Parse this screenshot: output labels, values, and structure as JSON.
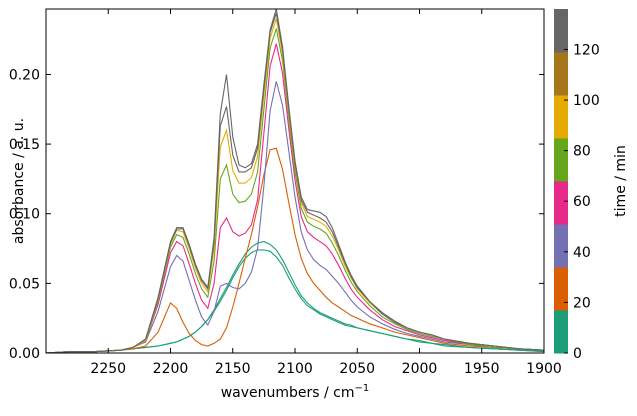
{
  "chart_data": {
    "type": "line",
    "title": "",
    "xlabel": "wavenumbers / cm⁻¹",
    "ylabel": "absorbance / a. u.",
    "xlim": [
      2300,
      1900
    ],
    "ylim": [
      0,
      0.247
    ],
    "x_inverted": true,
    "grid": false,
    "x_ticks": [
      "2250",
      "2200",
      "2150",
      "2100",
      "2050",
      "2000",
      "1950",
      "1900"
    ],
    "y_ticks": [
      "0.00",
      "0.05",
      "0.10",
      "0.15",
      "0.20"
    ],
    "x_tick_values": [
      2250,
      2200,
      2150,
      2100,
      2050,
      2000,
      1950,
      1900
    ],
    "y_tick_values": [
      0,
      0.05,
      0.1,
      0.15,
      0.2
    ],
    "colorbar": {
      "label": "time / min",
      "ticks": [
        "0",
        "20",
        "40",
        "60",
        "80",
        "100",
        "120"
      ],
      "tick_values": [
        0,
        20,
        40,
        60,
        80,
        100,
        120
      ],
      "range": [
        0,
        136
      ],
      "colors": [
        "#1b9e77",
        "#d95f02",
        "#7570b3",
        "#e7298a",
        "#66a61e",
        "#e6ab02",
        "#a6761d",
        "#666666"
      ]
    },
    "series_x": [
      2300,
      2280,
      2260,
      2240,
      2230,
      2220,
      2210,
      2200,
      2195,
      2190,
      2185,
      2180,
      2175,
      2170,
      2165,
      2160,
      2155,
      2150,
      2145,
      2140,
      2135,
      2130,
      2125,
      2120,
      2115,
      2110,
      2105,
      2100,
      2095,
      2090,
      2085,
      2080,
      2075,
      2070,
      2065,
      2060,
      2055,
      2050,
      2040,
      2030,
      2020,
      2010,
      2000,
      1990,
      1980,
      1960,
      1940,
      1920,
      1900
    ],
    "series": [
      {
        "time": 0,
        "y": [
          0.0,
          0.001,
          0.001,
          0.002,
          0.003,
          0.004,
          0.005,
          0.007,
          0.008,
          0.01,
          0.012,
          0.015,
          0.019,
          0.024,
          0.03,
          0.037,
          0.045,
          0.054,
          0.062,
          0.068,
          0.072,
          0.074,
          0.074,
          0.073,
          0.069,
          0.063,
          0.054,
          0.046,
          0.039,
          0.034,
          0.031,
          0.028,
          0.026,
          0.024,
          0.022,
          0.02,
          0.019,
          0.018,
          0.016,
          0.014,
          0.012,
          0.01,
          0.008,
          0.007,
          0.005,
          0.004,
          0.003,
          0.002,
          0.001
        ]
      },
      {
        "time": 2,
        "y": [
          0.0,
          0.001,
          0.001,
          0.002,
          0.003,
          0.004,
          0.005,
          0.007,
          0.008,
          0.01,
          0.012,
          0.015,
          0.019,
          0.024,
          0.031,
          0.039,
          0.047,
          0.056,
          0.064,
          0.071,
          0.076,
          0.079,
          0.08,
          0.078,
          0.074,
          0.067,
          0.058,
          0.049,
          0.041,
          0.036,
          0.032,
          0.029,
          0.027,
          0.025,
          0.023,
          0.021,
          0.02,
          0.018,
          0.016,
          0.014,
          0.012,
          0.01,
          0.009,
          0.007,
          0.006,
          0.004,
          0.003,
          0.002,
          0.001
        ]
      },
      {
        "time": 20,
        "y": [
          0.0,
          0.001,
          0.001,
          0.002,
          0.003,
          0.005,
          0.015,
          0.036,
          0.032,
          0.022,
          0.014,
          0.009,
          0.006,
          0.005,
          0.007,
          0.01,
          0.018,
          0.033,
          0.05,
          0.068,
          0.085,
          0.105,
          0.128,
          0.146,
          0.147,
          0.132,
          0.108,
          0.085,
          0.068,
          0.057,
          0.05,
          0.045,
          0.04,
          0.036,
          0.033,
          0.03,
          0.027,
          0.025,
          0.021,
          0.018,
          0.015,
          0.013,
          0.011,
          0.009,
          0.007,
          0.005,
          0.004,
          0.003,
          0.002
        ]
      },
      {
        "time": 40,
        "y": [
          0.0,
          0.001,
          0.001,
          0.002,
          0.004,
          0.008,
          0.03,
          0.062,
          0.07,
          0.066,
          0.052,
          0.038,
          0.026,
          0.02,
          0.03,
          0.048,
          0.05,
          0.047,
          0.046,
          0.05,
          0.058,
          0.075,
          0.12,
          0.174,
          0.195,
          0.178,
          0.145,
          0.112,
          0.087,
          0.074,
          0.067,
          0.063,
          0.06,
          0.055,
          0.05,
          0.044,
          0.038,
          0.033,
          0.026,
          0.021,
          0.017,
          0.014,
          0.012,
          0.01,
          0.008,
          0.006,
          0.004,
          0.003,
          0.002
        ]
      },
      {
        "time": 60,
        "y": [
          0.0,
          0.001,
          0.001,
          0.002,
          0.004,
          0.009,
          0.035,
          0.072,
          0.08,
          0.077,
          0.064,
          0.05,
          0.038,
          0.032,
          0.05,
          0.09,
          0.097,
          0.087,
          0.084,
          0.086,
          0.092,
          0.11,
          0.158,
          0.206,
          0.222,
          0.201,
          0.161,
          0.124,
          0.098,
          0.087,
          0.083,
          0.08,
          0.077,
          0.071,
          0.063,
          0.054,
          0.046,
          0.04,
          0.031,
          0.024,
          0.019,
          0.016,
          0.013,
          0.011,
          0.009,
          0.006,
          0.004,
          0.003,
          0.002
        ]
      },
      {
        "time": 80,
        "y": [
          0.0,
          0.001,
          0.001,
          0.002,
          0.004,
          0.009,
          0.037,
          0.076,
          0.085,
          0.083,
          0.071,
          0.057,
          0.046,
          0.04,
          0.066,
          0.125,
          0.135,
          0.114,
          0.108,
          0.109,
          0.114,
          0.13,
          0.175,
          0.219,
          0.233,
          0.21,
          0.168,
          0.13,
          0.104,
          0.094,
          0.091,
          0.089,
          0.086,
          0.079,
          0.07,
          0.06,
          0.051,
          0.044,
          0.034,
          0.026,
          0.021,
          0.017,
          0.014,
          0.012,
          0.01,
          0.006,
          0.004,
          0.003,
          0.002
        ]
      },
      {
        "time": 100,
        "y": [
          0.0,
          0.001,
          0.001,
          0.002,
          0.004,
          0.009,
          0.038,
          0.078,
          0.088,
          0.087,
          0.075,
          0.061,
          0.05,
          0.044,
          0.075,
          0.148,
          0.16,
          0.131,
          0.122,
          0.122,
          0.126,
          0.141,
          0.185,
          0.226,
          0.24,
          0.215,
          0.172,
          0.134,
          0.108,
          0.098,
          0.096,
          0.094,
          0.091,
          0.084,
          0.074,
          0.063,
          0.054,
          0.046,
          0.036,
          0.028,
          0.022,
          0.018,
          0.015,
          0.013,
          0.01,
          0.007,
          0.005,
          0.003,
          0.002
        ]
      },
      {
        "time": 120,
        "y": [
          0.0,
          0.001,
          0.001,
          0.002,
          0.004,
          0.01,
          0.039,
          0.079,
          0.089,
          0.089,
          0.077,
          0.063,
          0.052,
          0.046,
          0.08,
          0.163,
          0.177,
          0.142,
          0.13,
          0.13,
          0.133,
          0.147,
          0.19,
          0.23,
          0.244,
          0.218,
          0.175,
          0.136,
          0.11,
          0.101,
          0.099,
          0.097,
          0.094,
          0.087,
          0.076,
          0.065,
          0.055,
          0.047,
          0.037,
          0.028,
          0.022,
          0.018,
          0.015,
          0.013,
          0.01,
          0.007,
          0.005,
          0.003,
          0.002
        ]
      },
      {
        "time": 136,
        "y": [
          0.0,
          0.001,
          0.001,
          0.002,
          0.004,
          0.01,
          0.04,
          0.08,
          0.09,
          0.09,
          0.078,
          0.064,
          0.053,
          0.047,
          0.083,
          0.172,
          0.2,
          0.155,
          0.135,
          0.133,
          0.136,
          0.15,
          0.193,
          0.232,
          0.247,
          0.22,
          0.177,
          0.138,
          0.112,
          0.103,
          0.102,
          0.101,
          0.098,
          0.09,
          0.078,
          0.066,
          0.056,
          0.048,
          0.037,
          0.029,
          0.023,
          0.018,
          0.015,
          0.013,
          0.01,
          0.007,
          0.005,
          0.003,
          0.002
        ]
      }
    ]
  }
}
